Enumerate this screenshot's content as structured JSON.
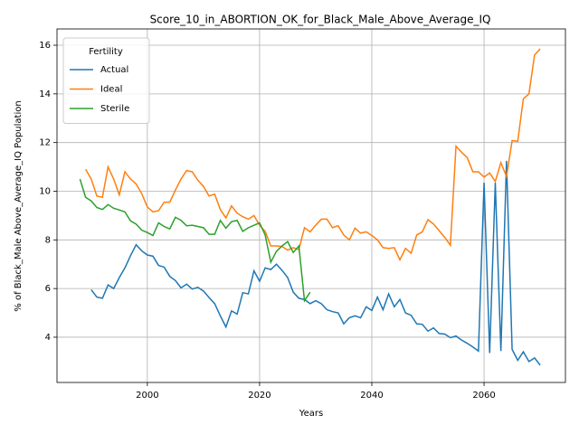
{
  "chart_data": {
    "type": "line",
    "title": "Score_10_in_ABORTION_OK_for_Black_Male_Above_Average_IQ",
    "x_label": "Years",
    "y_label": "% of Black_Male Above_Average_IQ Population",
    "x": [
      1988,
      1989,
      1990,
      1991,
      1992,
      1993,
      1994,
      1995,
      1996,
      1997,
      1998,
      1999,
      2000,
      2001,
      2002,
      2003,
      2004,
      2005,
      2006,
      2007,
      2008,
      2009,
      2010,
      2011,
      2012,
      2013,
      2014,
      2015,
      2016,
      2017,
      2018,
      2019,
      2020,
      2021,
      2022,
      2023,
      2024,
      2025,
      2026,
      2027,
      2028,
      2029,
      2030,
      2031,
      2032,
      2033,
      2034,
      2035,
      2036,
      2037,
      2038,
      2039,
      2040,
      2041,
      2042,
      2043,
      2044,
      2045,
      2046,
      2047,
      2048,
      2049,
      2050,
      2051,
      2052,
      2053,
      2054,
      2055,
      2056,
      2057,
      2058,
      2059,
      2060,
      2061,
      2062,
      2063,
      2064,
      2065,
      2066,
      2067,
      2068,
      2069,
      2070
    ],
    "series": [
      {
        "name": "Actual",
        "color": "#1f77b4",
        "values": [
          null,
          null,
          5.95,
          5.65,
          5.6,
          6.15,
          6.0,
          6.45,
          6.85,
          7.35,
          7.8,
          7.55,
          7.38,
          7.33,
          6.95,
          6.88,
          6.5,
          6.33,
          6.03,
          6.18,
          5.98,
          6.05,
          5.9,
          5.63,
          5.38,
          4.88,
          4.42,
          5.08,
          4.95,
          5.83,
          5.78,
          6.73,
          6.3,
          6.85,
          6.78,
          7.0,
          6.75,
          6.45,
          5.85,
          5.6,
          5.55,
          5.38,
          5.5,
          5.38,
          5.13,
          5.05,
          5.0,
          4.55,
          4.8,
          4.88,
          4.8,
          5.25,
          5.1,
          5.65,
          5.13,
          5.78,
          5.25,
          5.55,
          5.0,
          4.9,
          4.55,
          4.53,
          4.25,
          4.38,
          4.15,
          4.13,
          3.98,
          4.05,
          3.88,
          3.75,
          3.6,
          3.43,
          10.35,
          3.35,
          10.35,
          3.43,
          11.25,
          3.5,
          3.05,
          3.4,
          3.0,
          3.15,
          2.85
        ]
      },
      {
        "name": "Ideal",
        "color": "#ff7f0e",
        "values": [
          null,
          10.9,
          10.5,
          9.8,
          9.75,
          11.0,
          10.5,
          9.85,
          10.8,
          10.5,
          10.3,
          9.9,
          9.35,
          9.15,
          9.2,
          9.55,
          9.55,
          10.05,
          10.5,
          10.85,
          10.8,
          10.45,
          10.2,
          9.8,
          9.88,
          9.25,
          8.9,
          9.4,
          9.1,
          8.95,
          8.85,
          9.0,
          8.6,
          8.35,
          7.75,
          7.75,
          7.73,
          7.58,
          7.68,
          7.6,
          8.5,
          8.33,
          8.6,
          8.85,
          8.85,
          8.5,
          8.58,
          8.2,
          8.0,
          8.48,
          8.28,
          8.33,
          8.18,
          8.0,
          7.68,
          7.65,
          7.68,
          7.18,
          7.65,
          7.45,
          8.2,
          8.33,
          8.83,
          8.65,
          8.38,
          8.1,
          7.78,
          11.85,
          11.6,
          11.38,
          10.8,
          10.8,
          10.58,
          10.75,
          10.4,
          11.18,
          10.6,
          12.08,
          12.05,
          13.8,
          14.0,
          15.6,
          15.85
        ]
      },
      {
        "name": "Sterile",
        "color": "#2ca02c",
        "values": [
          10.5,
          9.75,
          9.6,
          9.33,
          9.25,
          9.45,
          9.3,
          9.23,
          9.15,
          8.78,
          8.65,
          8.4,
          8.3,
          8.18,
          8.7,
          8.55,
          8.45,
          8.93,
          8.8,
          8.58,
          8.6,
          8.55,
          8.5,
          8.23,
          8.23,
          8.8,
          8.48,
          8.75,
          8.8,
          8.35,
          8.5,
          8.6,
          8.7,
          8.2,
          7.08,
          7.53,
          7.75,
          7.93,
          7.48,
          7.75,
          5.5,
          5.85,
          null,
          null,
          null,
          null,
          null,
          null,
          null,
          null,
          null,
          null,
          null,
          null,
          null,
          null,
          null,
          null,
          null,
          null,
          null,
          null,
          null,
          null,
          null,
          null,
          null,
          null,
          null,
          null,
          null,
          null,
          null,
          null,
          null,
          null,
          null,
          null,
          null,
          null,
          null,
          null,
          null
        ]
      }
    ],
    "xlim": [
      1983.9,
      2074.5
    ],
    "xticks": [
      2000,
      2020,
      2040,
      2060
    ],
    "ylim": [
      2.14,
      16.67
    ],
    "yticks": [
      4,
      6,
      8,
      10,
      12,
      14,
      16
    ],
    "grid": true,
    "legend_title": "Fertility",
    "legend_position": "upper left"
  }
}
